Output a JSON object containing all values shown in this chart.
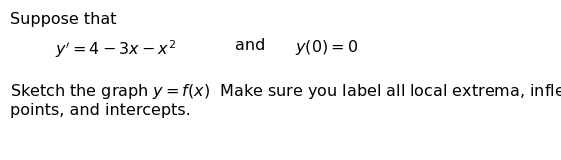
{
  "background_color": "#ffffff",
  "line1": "Suppose that",
  "line2_left": "$y' = 4 - 3x - x^2$",
  "line2_mid": "and",
  "line2_right": "$y(0) = 0$",
  "line3_plain": "Sketch the graph ",
  "line3_math": "$y = f(x)$",
  "line3_rest": "  Make sure you label all local extrema, inflection",
  "line4": "points, and intercepts.",
  "font_size_body": 11.5,
  "text_color": "#000000",
  "fig_width": 5.61,
  "fig_height": 1.6,
  "dpi": 100
}
